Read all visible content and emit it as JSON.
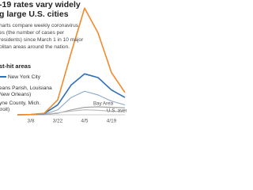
{
  "chart_data": {
    "type": "line",
    "title": [
      "-19 rates vary widely",
      "g large U.S. cities"
    ],
    "subtitle": [
      "harts compare weekly coronavirus",
      "es (the number of cases per",
      "residents) since March 1 in 10 major",
      "olitan areas around the nation."
    ],
    "legend_title": "st-hit areas",
    "categories": [
      null,
      "3/8",
      null,
      "3/22",
      null,
      "4/5",
      null,
      "4/19",
      null
    ],
    "ylim": [
      0,
      450
    ],
    "series": [
      {
        "name": "eans Parish, Louisiana",
        "name_detail": "New Orleans)",
        "color": "#f08a2c",
        "values": [
          0,
          1,
          6,
          60,
          250,
          430,
          330,
          170,
          90
        ]
      },
      {
        "name": "New York City",
        "color": "#2f6fb5",
        "values": [
          0,
          1,
          5,
          40,
          120,
          165,
          150,
          100,
          70
        ]
      },
      {
        "name": "yne County, Mich.",
        "name_detail": "troit)",
        "color": "#8aa9c7",
        "values": [
          0,
          0,
          2,
          20,
          70,
          95,
          80,
          55,
          40
        ]
      },
      {
        "name": "Bay Area",
        "color": "#b8b8b8",
        "values": [
          0,
          0,
          2,
          8,
          15,
          20,
          18,
          15,
          12
        ]
      },
      {
        "name": "U.S. average",
        "color": "#9a9a9a",
        "values": [
          0,
          0,
          1,
          6,
          20,
          30,
          32,
          30,
          28
        ]
      }
    ]
  }
}
